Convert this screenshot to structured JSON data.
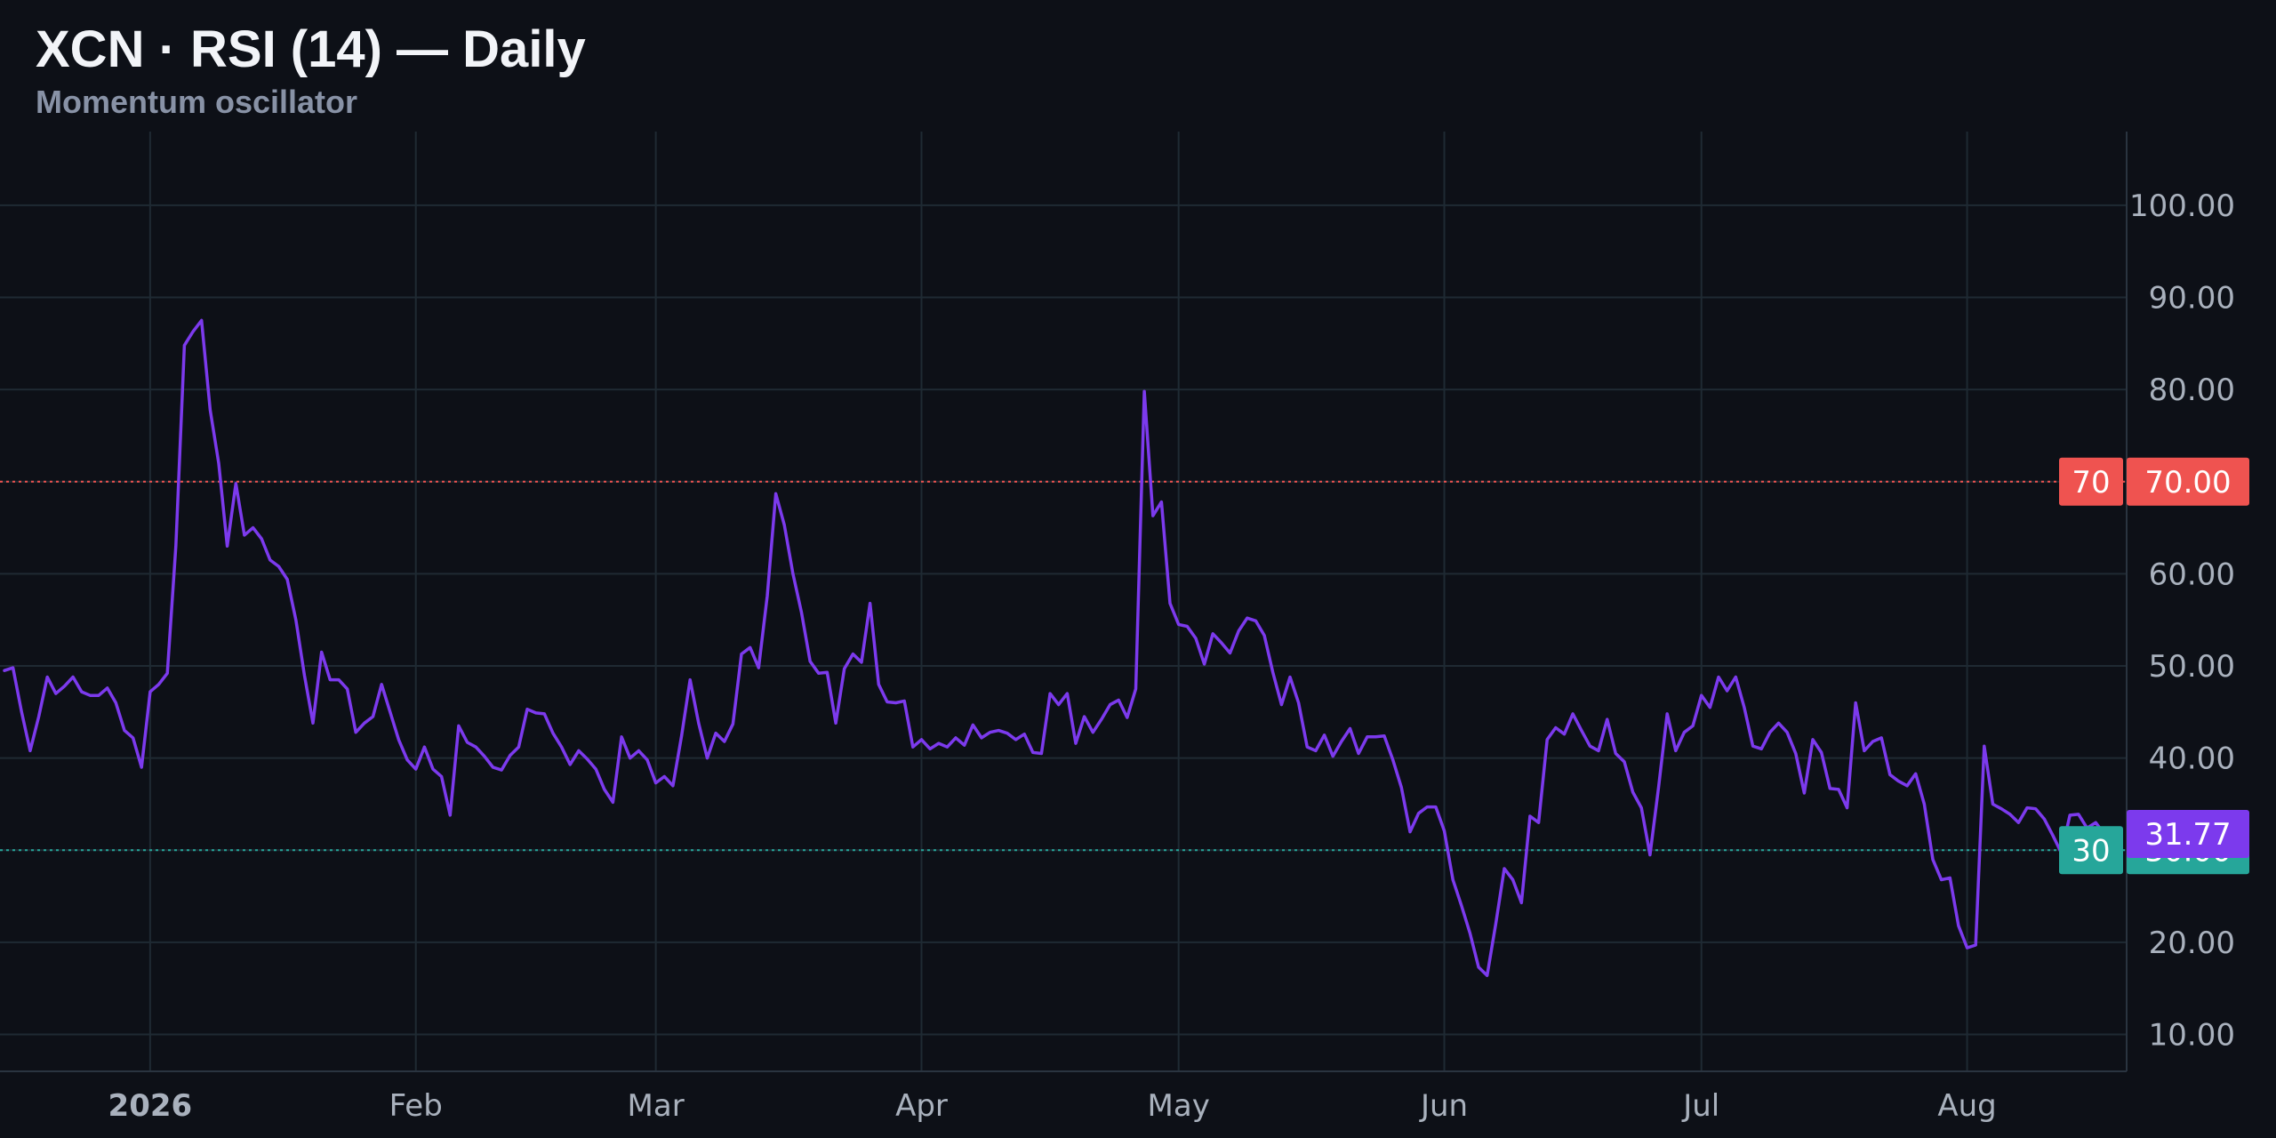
{
  "header": {
    "title": "XCN · RSI (14) — Daily",
    "subtitle": "Momentum oscillator"
  },
  "colors": {
    "background": "#0d1017",
    "grid": "#1f2a33",
    "rsi_line": "#7c3aed",
    "overbought": "#ef5350",
    "oversold": "#26a69a",
    "tick_text": "#a9b1bd"
  },
  "chart_data": {
    "type": "line",
    "title": "XCN · RSI (14) — Daily",
    "subtitle": "Momentum oscillator",
    "x_start_date": "2025-12-15",
    "x_tick_labels": [
      "2026",
      "Feb",
      "Mar",
      "Apr",
      "May",
      "Jun",
      "Jul",
      "Aug"
    ],
    "x_tick_dates": [
      "2026-01-01",
      "2026-02-01",
      "2026-03-01",
      "2026-04-01",
      "2026-05-01",
      "2026-06-01",
      "2026-07-01",
      "2026-08-01"
    ],
    "ylim": [
      6,
      108
    ],
    "y_ticks": [
      10,
      20,
      30,
      40,
      50,
      60,
      70,
      80,
      90,
      100
    ],
    "y_tick_labels": [
      "10.00",
      "20.00",
      "30.00",
      "40.00",
      "50.00",
      "60.00",
      "70.00",
      "80.00",
      "90.00",
      "100.00"
    ],
    "grid": true,
    "levels": [
      {
        "value": 70,
        "short": "70",
        "label": "70.00",
        "style": "dotted"
      },
      {
        "value": 30,
        "short": "30",
        "label": "30.00",
        "style": "dotted"
      }
    ],
    "last_value_label": "31.77",
    "series": [
      {
        "values": [
          49.5,
          49.8,
          45.0,
          40.8,
          44.5,
          48.8,
          47.0,
          47.8,
          48.8,
          47.2,
          46.8,
          46.8,
          47.6,
          46.0,
          43.0,
          42.2,
          39.0,
          47.2,
          48.0,
          49.2,
          63.0,
          84.8,
          86.3,
          87.5,
          77.8,
          72.0,
          63.0,
          69.8,
          64.2,
          65.0,
          63.8,
          61.5,
          60.8,
          59.4,
          55.0,
          49.0,
          43.8,
          51.5,
          48.5,
          48.5,
          47.5,
          42.8,
          43.8,
          44.5,
          48.0,
          45.0,
          42.0,
          39.8,
          38.8,
          41.2,
          38.8,
          38.0,
          33.8,
          43.5,
          41.7,
          41.2,
          40.2,
          39.0,
          38.7,
          40.3,
          41.2,
          45.3,
          44.9,
          44.8,
          42.7,
          41.2,
          39.3,
          40.8,
          39.9,
          38.8,
          36.6,
          35.2,
          42.3,
          40.0,
          40.8,
          39.8,
          37.3,
          38.0,
          37.0,
          42.4,
          48.5,
          43.8,
          40.0,
          42.7,
          41.8,
          43.7,
          51.3,
          52.0,
          49.8,
          57.6,
          68.7,
          65.3,
          60.0,
          55.8,
          50.5,
          49.2,
          49.3,
          43.8,
          49.7,
          51.3,
          50.4,
          56.8,
          48.0,
          46.1,
          46.0,
          46.2,
          41.2,
          42.0,
          41.0,
          41.6,
          41.2,
          42.2,
          41.4,
          43.6,
          42.2,
          42.8,
          43.0,
          42.7,
          42.0,
          42.6,
          40.6,
          40.5,
          47.0,
          45.8,
          47.0,
          41.6,
          44.5,
          42.8,
          44.2,
          45.8,
          46.3,
          44.4,
          47.5,
          79.8,
          66.3,
          67.8,
          56.8,
          54.5,
          54.3,
          53.0,
          50.2,
          53.5,
          52.5,
          51.4,
          53.8,
          55.2,
          54.9,
          53.3,
          49.3,
          45.8,
          48.8,
          46.0,
          41.2,
          40.8,
          42.5,
          40.2,
          41.8,
          43.2,
          40.5,
          42.3,
          42.3,
          42.4,
          39.8,
          36.8,
          32.0,
          34.0,
          34.7,
          34.7,
          32.1,
          26.8,
          24.0,
          21.0,
          17.3,
          16.4,
          22.0,
          28.0,
          26.8,
          24.3,
          33.7,
          33.0,
          42.0,
          43.3,
          42.6,
          44.8,
          43.0,
          41.3,
          40.8,
          44.2,
          40.5,
          39.6,
          36.3,
          34.6,
          29.5,
          36.8,
          44.8,
          40.8,
          42.8,
          43.5,
          46.8,
          45.5,
          48.8,
          47.3,
          48.8,
          45.5,
          41.3,
          41.0,
          42.8,
          43.8,
          42.8,
          40.5,
          36.2,
          42.0,
          40.6,
          36.7,
          36.6,
          34.6,
          46.0,
          40.8,
          41.8,
          42.2,
          38.2,
          37.5,
          37.0,
          38.3,
          35.0,
          29.0,
          26.8,
          27.0,
          21.8,
          19.4,
          19.7,
          41.3,
          35.0,
          34.5,
          33.9,
          33.0,
          34.6,
          34.5,
          33.4,
          31.6,
          29.7,
          33.8,
          33.9,
          32.4,
          33.0,
          31.77
        ]
      }
    ]
  }
}
